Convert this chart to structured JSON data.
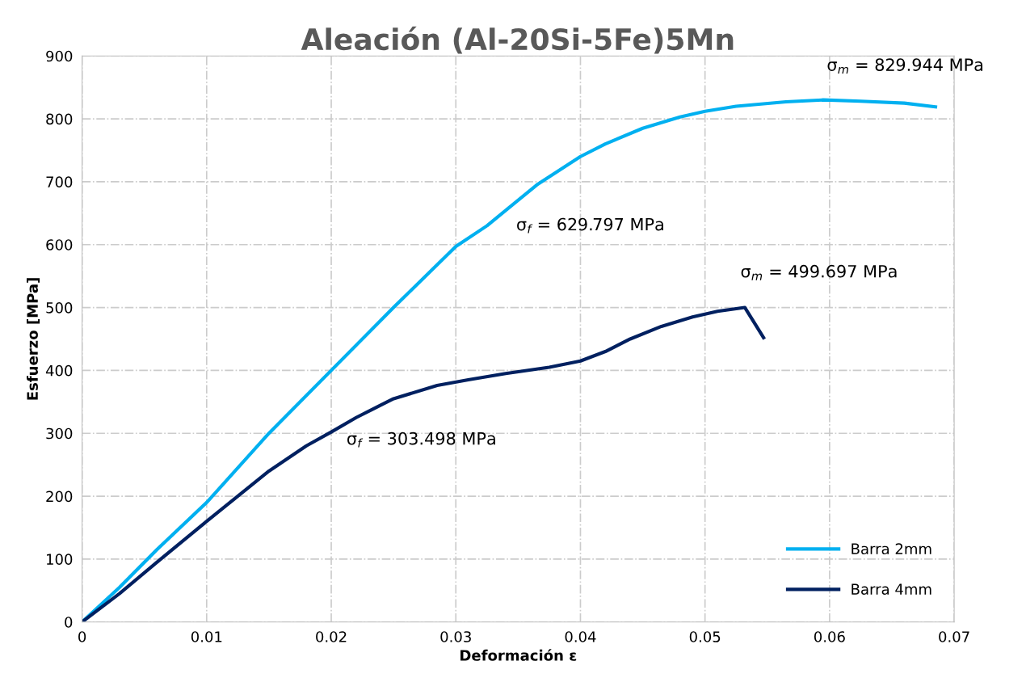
{
  "chart_data": {
    "type": "line",
    "title": "Aleación (Al-20Si-5Fe)5Mn",
    "xlabel": "Deformación ε",
    "ylabel": "Esfuerzo [MPa]",
    "xlim": [
      0,
      0.07
    ],
    "xticks": [
      0,
      0.01,
      0.02,
      0.03,
      0.04,
      0.05,
      0.06,
      0.07
    ],
    "ylim": [
      0,
      900
    ],
    "yticks": [
      0,
      100,
      200,
      300,
      400,
      500,
      600,
      700,
      800,
      900
    ],
    "grid": true,
    "legend": "bottom right",
    "marker": "none",
    "line_style": "solid",
    "series": [
      {
        "name": "Barra 2mm",
        "color": "#00b0f0",
        "x": [
          0,
          0.003,
          0.006,
          0.01,
          0.015,
          0.02,
          0.025,
          0.03,
          0.0325,
          0.0365,
          0.04,
          0.042,
          0.045,
          0.048,
          0.05,
          0.0525,
          0.0565,
          0.0595,
          0.0625,
          0.066,
          0.0685
        ],
        "values": [
          0,
          55,
          115,
          190,
          300,
          400,
          500,
          597,
          630,
          695,
          740,
          760,
          785,
          803,
          812,
          820,
          827,
          830,
          828,
          825,
          819
        ]
      },
      {
        "name": "Barra 4mm",
        "color": "#002060",
        "x": [
          0,
          0.003,
          0.006,
          0.01,
          0.015,
          0.018,
          0.02,
          0.022,
          0.024,
          0.025,
          0.0285,
          0.031,
          0.034,
          0.0375,
          0.04,
          0.042,
          0.044,
          0.0465,
          0.049,
          0.051,
          0.0532,
          0.0547
        ],
        "values": [
          0,
          45,
          95,
          160,
          240,
          280,
          302,
          325,
          345,
          355,
          376,
          385,
          395,
          405,
          415,
          430,
          450,
          470,
          485,
          494,
          500,
          452
        ]
      }
    ],
    "annotations": [
      {
        "text": "σ$_{f}$ = 629.797 MPa",
        "x": 0.0325,
        "y": 629.797
      },
      {
        "text": "σ$_{m}$ = 829.944 MPa",
        "x": 0.0595,
        "y": 829.944
      },
      {
        "text": "σ$_{m}$ = 499.697 MPa",
        "x": 0.0532,
        "y": 499.697
      },
      {
        "text": "σ$_{f}$ = 303.498 MPa",
        "x": 0.0205,
        "y": 303.498
      }
    ]
  }
}
